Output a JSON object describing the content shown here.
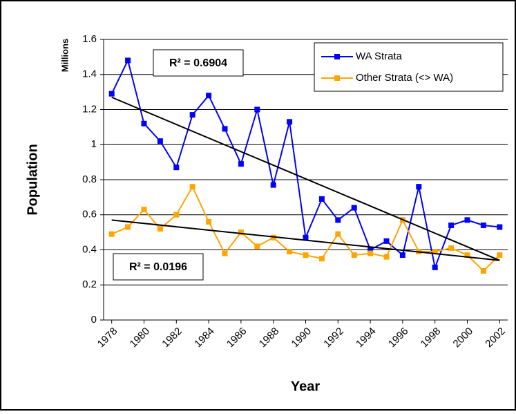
{
  "chart_data": {
    "type": "line",
    "y_label": "Population",
    "y_unit_label": "Millions",
    "x_label": "Year",
    "x": [
      1978,
      1979,
      1980,
      1981,
      1982,
      1983,
      1984,
      1985,
      1986,
      1987,
      1988,
      1989,
      1990,
      1991,
      1992,
      1993,
      1994,
      1995,
      1996,
      1997,
      1998,
      1999,
      2000,
      2001,
      2002
    ],
    "series": [
      {
        "name": "WA Strata",
        "color": "#0000ff",
        "values": [
          1.29,
          1.48,
          1.12,
          1.02,
          0.87,
          1.17,
          1.28,
          1.09,
          0.89,
          1.2,
          0.77,
          1.13,
          0.47,
          0.69,
          0.57,
          0.64,
          0.4,
          0.45,
          0.37,
          0.76,
          0.3,
          0.54,
          0.57,
          0.54,
          0.53
        ]
      },
      {
        "name": "Other Strata (<> WA)",
        "color": "#ffa500",
        "values": [
          0.49,
          0.53,
          0.63,
          0.52,
          0.6,
          0.76,
          0.56,
          0.38,
          0.5,
          0.42,
          0.47,
          0.39,
          0.37,
          0.35,
          0.49,
          0.37,
          0.38,
          0.36,
          0.57,
          0.39,
          0.39,
          0.41,
          0.37,
          0.28,
          0.37
        ]
      }
    ],
    "trendlines": [
      {
        "x": [
          1978,
          2002
        ],
        "values": [
          1.27,
          0.34
        ],
        "color": "#000000",
        "annotation": "R² = 0.6904",
        "annotation_color": "#0000ff"
      },
      {
        "x": [
          1978,
          2002
        ],
        "values": [
          0.57,
          0.34
        ],
        "color": "#000000",
        "annotation": "R² = 0.0196",
        "annotation_color": "#ffa500"
      }
    ],
    "xlim": [
      1977.5,
      2002.5
    ],
    "xticks": [
      1978,
      1980,
      1982,
      1984,
      1986,
      1988,
      1990,
      1992,
      1994,
      1996,
      1998,
      2000,
      2002
    ],
    "ylim": [
      0,
      1.6
    ],
    "yticks": [
      0,
      0.2,
      0.4,
      0.6,
      0.8,
      1,
      1.2,
      1.4,
      1.6
    ],
    "grid": true,
    "legend": "top-right"
  }
}
